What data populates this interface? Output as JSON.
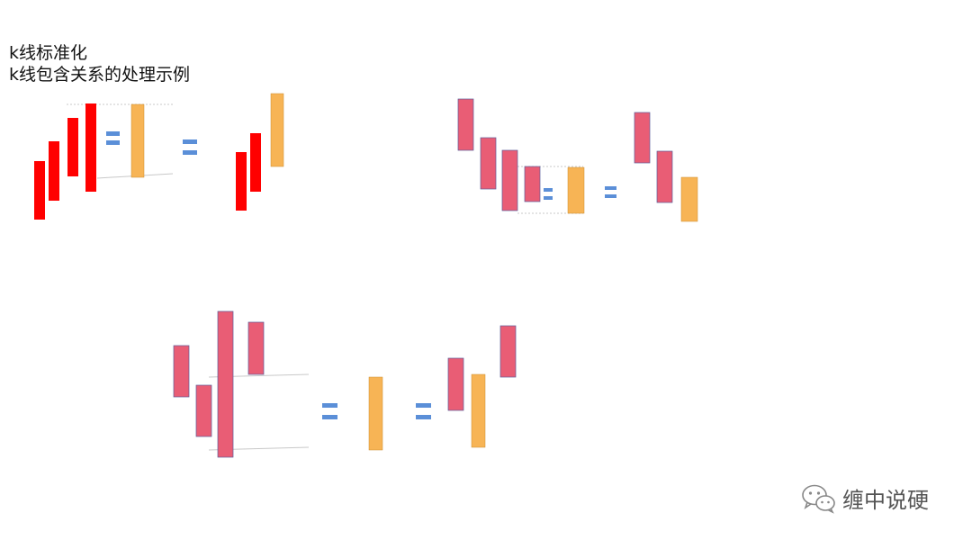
{
  "title": {
    "line1": "k线标准化",
    "line2": "k线包含关系的处理示例"
  },
  "watermark": {
    "text": "缠中说硬",
    "icon": "wechat-icon"
  },
  "colors": {
    "red_candle": "#ff0000",
    "pink_candle": "#e95d75",
    "pink_border": "#5b5e9a",
    "merged_candle": "#f7b455",
    "merged_border": "#c98a2e",
    "equals_sign": "#5b8fd8",
    "guide_line": "#c8c8c8"
  },
  "examples": [
    {
      "name": "uptrend-red",
      "original_candles": 4,
      "equals_signs": 2,
      "result_candles": 3
    },
    {
      "name": "downtrend-pink",
      "original_candles": 4,
      "equals_signs": 2,
      "result_candles": 3
    },
    {
      "name": "outside-bar-pink",
      "original_candles": 4,
      "equals_signs": 2,
      "result_candles": 3
    }
  ]
}
